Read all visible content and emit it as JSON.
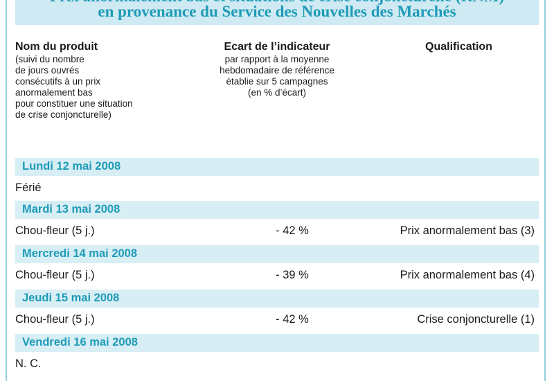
{
  "title": {
    "line1": "Prix anormalement bas et situations de crise conjoncturelle (RNM)",
    "line2": "en provenance du Service des Nouvelles des Marchés"
  },
  "headers": {
    "product": {
      "main": "Nom du produit",
      "sub": "(suivi du nombre\nde jours ouvrés\nconsécutifs à un prix\nanormalement bas\npour constituer une situation\nde crise conjoncturelle)"
    },
    "ecart": {
      "main": "Ecart de l’indicateur",
      "sub": "par rapport à la moyenne\nhebdomadaire de référence\nétablie sur 5 campagnes\n(en % d’écart)"
    },
    "qualification": {
      "main": "Qualification",
      "sub": ""
    }
  },
  "days": [
    {
      "label": "Lundi 12 mai 2008",
      "product": "Férié",
      "ecart": "",
      "qualification": ""
    },
    {
      "label": "Mardi 13 mai 2008",
      "product": "Chou-fleur (5 j.)",
      "ecart": "- 42 %",
      "qualification": "Prix anormalement bas (3)"
    },
    {
      "label": "Mercredi 14 mai 2008",
      "product": "Chou-fleur (5 j.)",
      "ecart": "- 39 %",
      "qualification": "Prix anormalement bas (4)"
    },
    {
      "label": "Jeudi 15 mai 2008",
      "product": "Chou-fleur (5 j.)",
      "ecart": "- 42 %",
      "qualification": "Crise conjoncturelle (1)"
    },
    {
      "label": "Vendredi 16 mai 2008",
      "product": "N. C.",
      "ecart": "",
      "qualification": ""
    }
  ],
  "colors": {
    "accent": "#1e9bb8",
    "band": "#d7eef5",
    "border": "#8fd0dc"
  }
}
